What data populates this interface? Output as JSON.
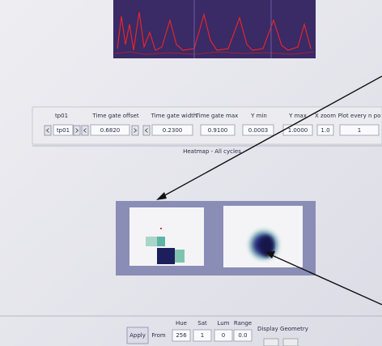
{
  "controls": [
    {
      "label": "tp01",
      "value": "tp01"
    },
    {
      "label": "Time gate offset",
      "value": "0.6820"
    },
    {
      "label": "Time gate width",
      "value": "0.2300"
    },
    {
      "label": "Time gate max",
      "value": "0.9100"
    },
    {
      "label": "Y min",
      "value": "0.0003"
    },
    {
      "label": "Y max",
      "value": "1.0000"
    },
    {
      "label": "X zoom",
      "value": "1.0"
    },
    {
      "label": "Plot every n po",
      "value": "1"
    }
  ],
  "heatmap_title": "Heatmap - All cycles",
  "color_panel": {
    "apply": "Apply",
    "headers": [
      "Hue",
      "Sat",
      "Lum",
      "Range"
    ],
    "row_label": "From",
    "row": [
      "256",
      "1",
      "0",
      "0.0"
    ],
    "display_geometry": "Display Geometry"
  }
}
